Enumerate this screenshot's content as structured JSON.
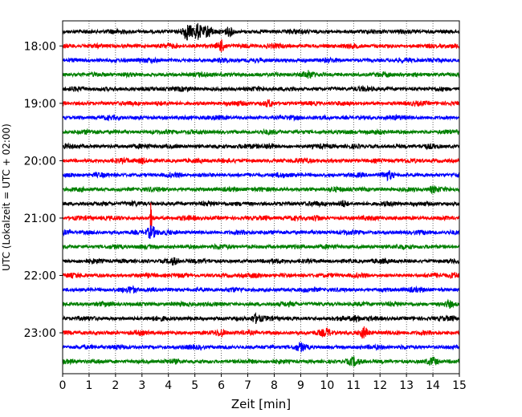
{
  "chart_data": {
    "type": "line",
    "subtype": "helicorder",
    "title": "",
    "xlabel": "Zeit  [min]",
    "ylabel": "UTC (Lokalzeit = UTC + 02:00)",
    "xlim": [
      0,
      15
    ],
    "x_ticks": [
      0,
      1,
      2,
      3,
      4,
      5,
      6,
      7,
      8,
      9,
      10,
      11,
      12,
      13,
      14,
      15
    ],
    "x_grid": "dotted",
    "y_tick_labels": [
      "18:00",
      "19:00",
      "20:00",
      "21:00",
      "22:00",
      "23:00"
    ],
    "trace_minutes": 15,
    "trace_start": "17:45",
    "colors": [
      "#000000",
      "#ff0000",
      "#0000ff",
      "#008000"
    ],
    "traces": [
      {
        "start": "17:45",
        "color": "#000000",
        "events": [
          {
            "t": 4.7,
            "amp": 0.9
          },
          {
            "t": 5.1,
            "amp": 0.95
          },
          {
            "t": 5.5,
            "amp": 0.75
          },
          {
            "t": 6.3,
            "amp": 0.45
          }
        ]
      },
      {
        "start": "18:00",
        "color": "#ff0000",
        "events": [
          {
            "t": 6.0,
            "amp": 0.7
          }
        ]
      },
      {
        "start": "18:15",
        "color": "#0000ff",
        "events": []
      },
      {
        "start": "18:30",
        "color": "#008000",
        "events": [
          {
            "t": 9.3,
            "amp": 0.3
          }
        ]
      },
      {
        "start": "18:45",
        "color": "#000000",
        "events": []
      },
      {
        "start": "19:00",
        "color": "#ff0000",
        "events": [
          {
            "t": 7.8,
            "amp": 0.35
          }
        ]
      },
      {
        "start": "19:15",
        "color": "#0000ff",
        "events": []
      },
      {
        "start": "19:30",
        "color": "#008000",
        "events": []
      },
      {
        "start": "19:45",
        "color": "#000000",
        "events": [
          {
            "t": 7.8,
            "amp": 0.3
          }
        ]
      },
      {
        "start": "20:00",
        "color": "#ff0000",
        "events": [
          {
            "t": 3.0,
            "amp": 0.3
          }
        ]
      },
      {
        "start": "20:15",
        "color": "#0000ff",
        "events": [
          {
            "t": 12.3,
            "amp": 0.45
          }
        ]
      },
      {
        "start": "20:30",
        "color": "#008000",
        "events": [
          {
            "t": 14.0,
            "amp": 0.3
          }
        ]
      },
      {
        "start": "20:45",
        "color": "#000000",
        "events": [
          {
            "t": 10.6,
            "amp": 0.35
          }
        ]
      },
      {
        "start": "21:00",
        "color": "#ff0000",
        "events": [
          {
            "t": 3.35,
            "amp": 2.4
          },
          {
            "t": 9.6,
            "amp": 0.3
          }
        ]
      },
      {
        "start": "21:15",
        "color": "#0000ff",
        "events": [
          {
            "t": 3.35,
            "amp": 0.8
          }
        ]
      },
      {
        "start": "21:30",
        "color": "#008000",
        "events": []
      },
      {
        "start": "21:45",
        "color": "#000000",
        "events": [
          {
            "t": 4.2,
            "amp": 0.35
          }
        ]
      },
      {
        "start": "22:00",
        "color": "#ff0000",
        "events": [
          {
            "t": 14.8,
            "amp": 0.3
          }
        ]
      },
      {
        "start": "22:15",
        "color": "#0000ff",
        "events": [
          {
            "t": 2.6,
            "amp": 0.25
          }
        ]
      },
      {
        "start": "22:30",
        "color": "#008000",
        "events": [
          {
            "t": 14.6,
            "amp": 0.4
          }
        ]
      },
      {
        "start": "22:45",
        "color": "#000000",
        "events": [
          {
            "t": 7.3,
            "amp": 0.5
          },
          {
            "t": 11.1,
            "amp": 0.35
          }
        ]
      },
      {
        "start": "23:00",
        "color": "#ff0000",
        "events": [
          {
            "t": 6.0,
            "amp": 0.35
          },
          {
            "t": 10.0,
            "amp": 0.35
          },
          {
            "t": 11.4,
            "amp": 0.7
          }
        ]
      },
      {
        "start": "23:15",
        "color": "#0000ff",
        "events": [
          {
            "t": 9.0,
            "amp": 0.35
          }
        ]
      },
      {
        "start": "23:30",
        "color": "#008000",
        "events": [
          {
            "t": 11.0,
            "amp": 0.35
          },
          {
            "t": 14.0,
            "amp": 0.4
          }
        ]
      }
    ]
  }
}
